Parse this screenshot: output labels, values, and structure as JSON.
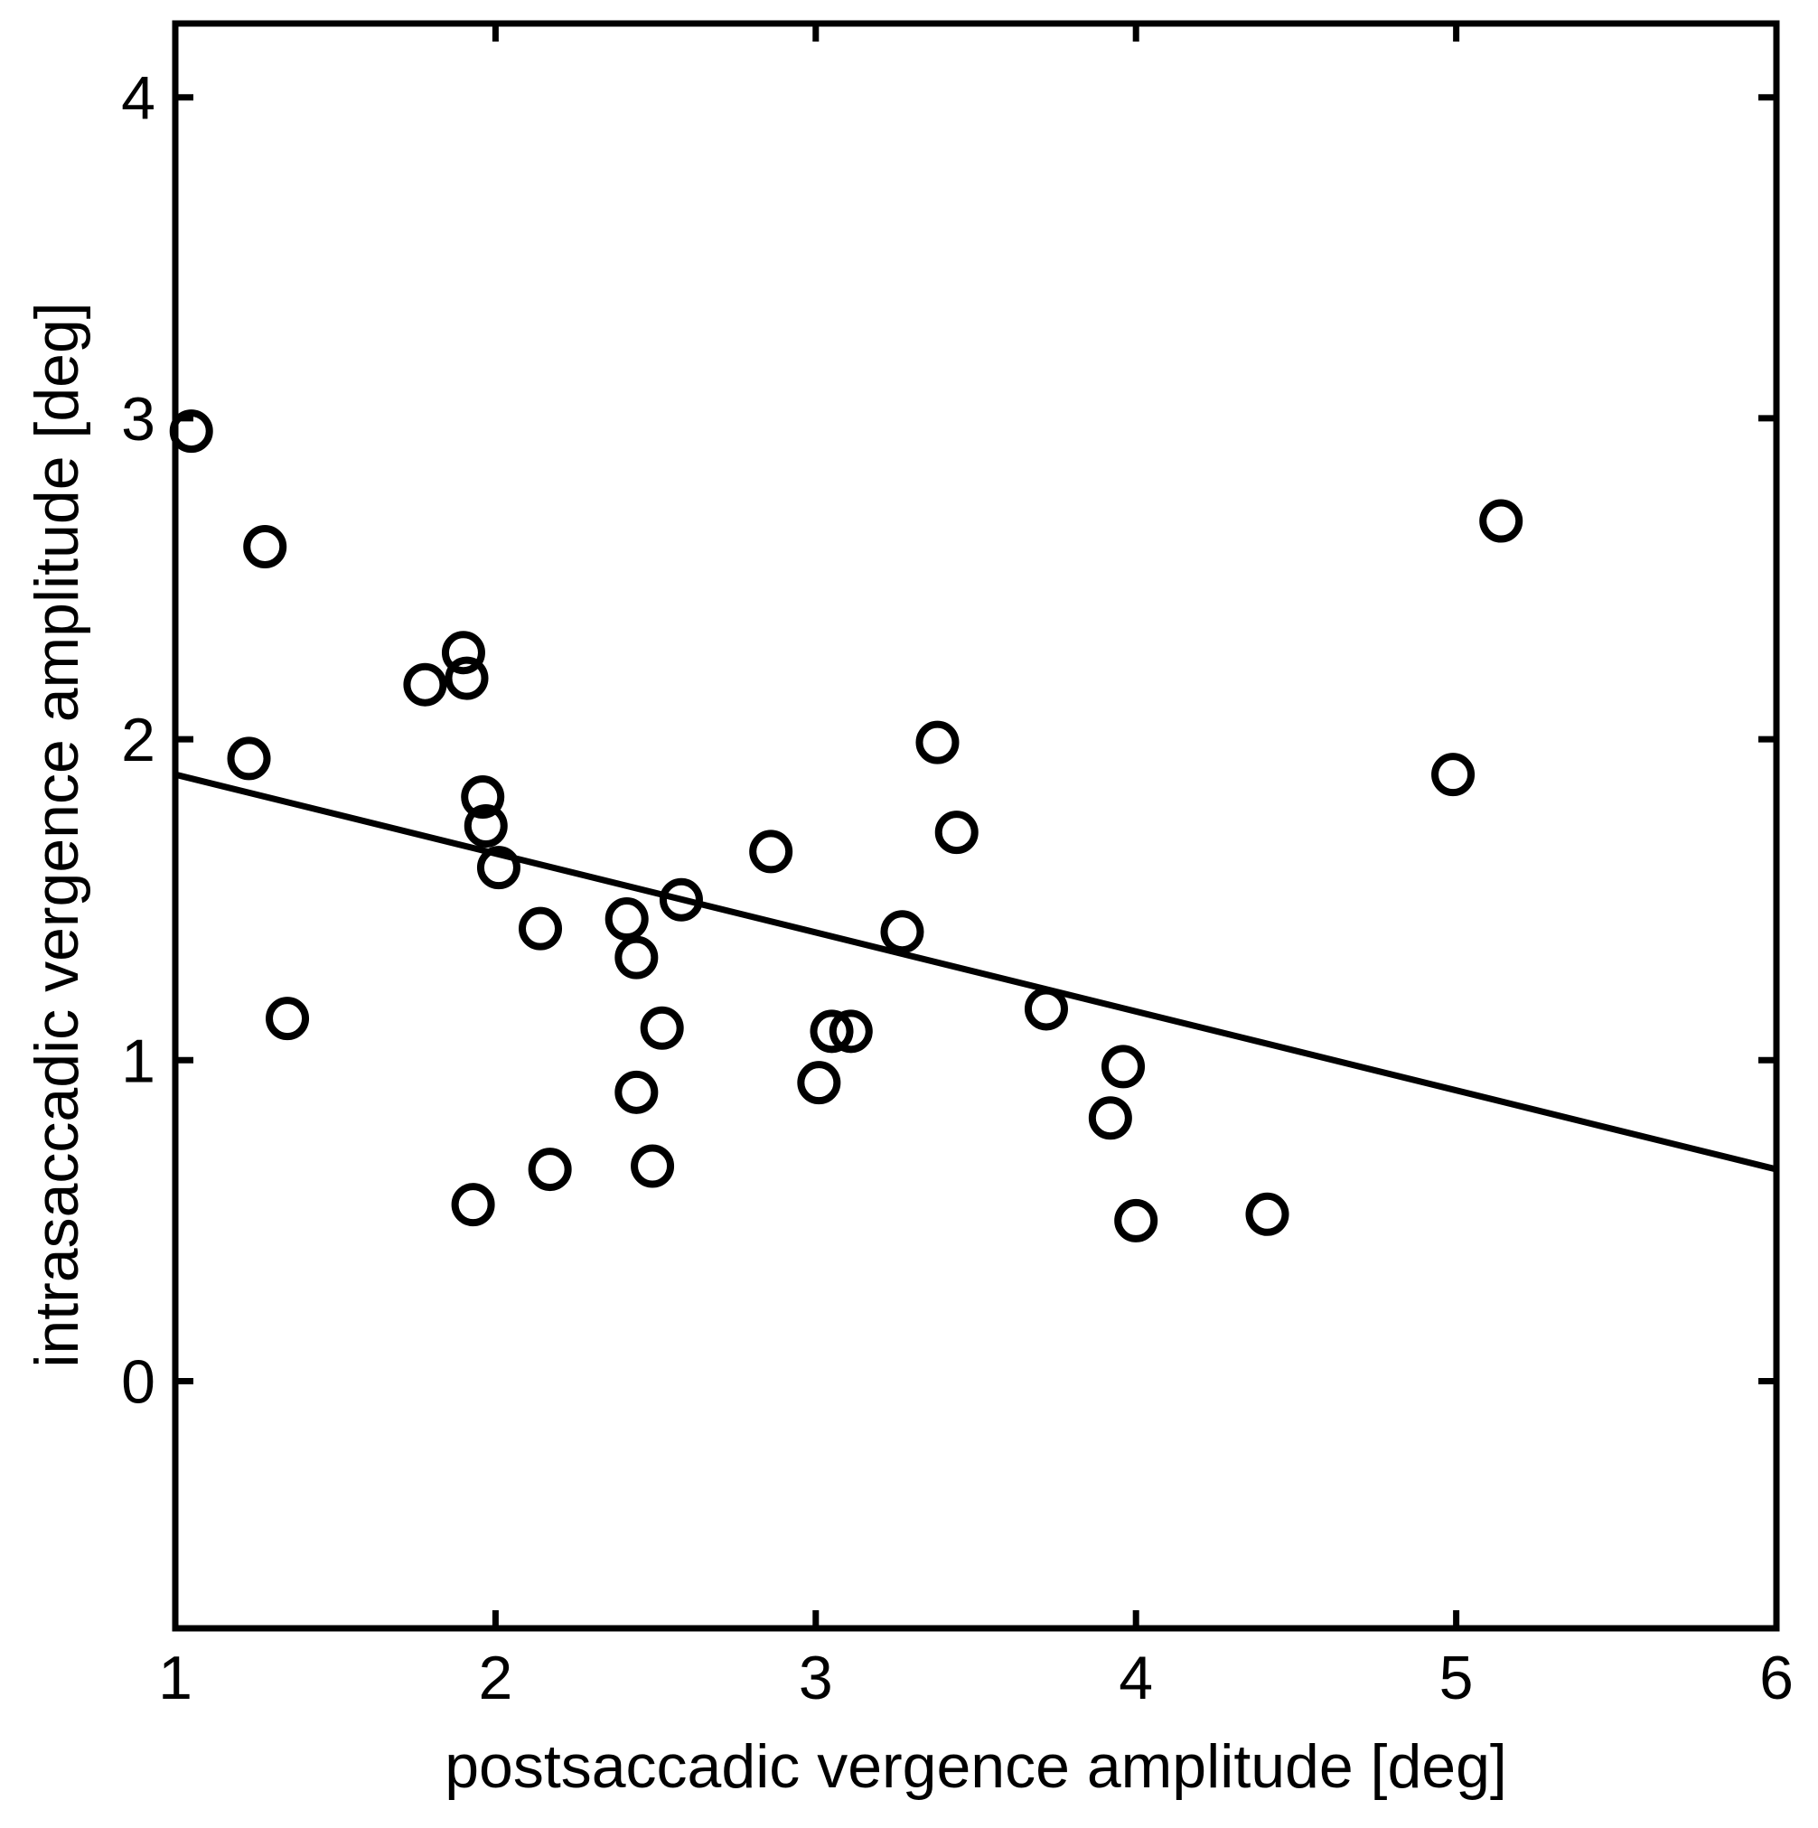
{
  "chart_data": {
    "type": "scatter",
    "title": "",
    "xlabel": "postsaccadic vergence amplitude [deg]",
    "ylabel": "intrasaccadic vergence amplitude [deg]",
    "xlim": [
      1,
      6
    ],
    "ylim": [
      -0.77,
      4.23
    ],
    "xticks": [
      1,
      2,
      3,
      4,
      5,
      6
    ],
    "yticks": [
      0,
      1,
      2,
      3,
      4
    ],
    "grid": false,
    "colors": {
      "ink": "#000000",
      "background": "#ffffff"
    },
    "series": [
      {
        "name": "data",
        "marker": "circle-open",
        "points": [
          {
            "x": 1.05,
            "y": 2.96
          },
          {
            "x": 1.28,
            "y": 2.6
          },
          {
            "x": 1.23,
            "y": 1.94
          },
          {
            "x": 1.35,
            "y": 1.13
          },
          {
            "x": 1.78,
            "y": 2.17
          },
          {
            "x": 1.9,
            "y": 2.27
          },
          {
            "x": 1.91,
            "y": 2.19
          },
          {
            "x": 1.96,
            "y": 1.82
          },
          {
            "x": 1.97,
            "y": 1.73
          },
          {
            "x": 2.01,
            "y": 1.6
          },
          {
            "x": 1.93,
            "y": 0.55
          },
          {
            "x": 2.14,
            "y": 1.41
          },
          {
            "x": 2.17,
            "y": 0.66
          },
          {
            "x": 2.41,
            "y": 1.44
          },
          {
            "x": 2.44,
            "y": 1.32
          },
          {
            "x": 2.44,
            "y": 0.9
          },
          {
            "x": 2.49,
            "y": 0.67
          },
          {
            "x": 2.52,
            "y": 1.1
          },
          {
            "x": 2.58,
            "y": 1.5
          },
          {
            "x": 2.86,
            "y": 1.65
          },
          {
            "x": 3.01,
            "y": 0.93
          },
          {
            "x": 3.05,
            "y": 1.09
          },
          {
            "x": 3.11,
            "y": 1.09
          },
          {
            "x": 3.27,
            "y": 1.4
          },
          {
            "x": 3.38,
            "y": 1.99
          },
          {
            "x": 3.44,
            "y": 1.71
          },
          {
            "x": 3.72,
            "y": 1.16
          },
          {
            "x": 3.92,
            "y": 0.82
          },
          {
            "x": 3.96,
            "y": 0.98
          },
          {
            "x": 4.0,
            "y": 0.5
          },
          {
            "x": 4.41,
            "y": 0.52
          },
          {
            "x": 4.99,
            "y": 1.89
          },
          {
            "x": 5.14,
            "y": 2.68
          }
        ]
      },
      {
        "name": "linear fit",
        "marker": "line",
        "x": [
          1,
          6
        ],
        "y": [
          1.89,
          0.66
        ]
      }
    ]
  }
}
